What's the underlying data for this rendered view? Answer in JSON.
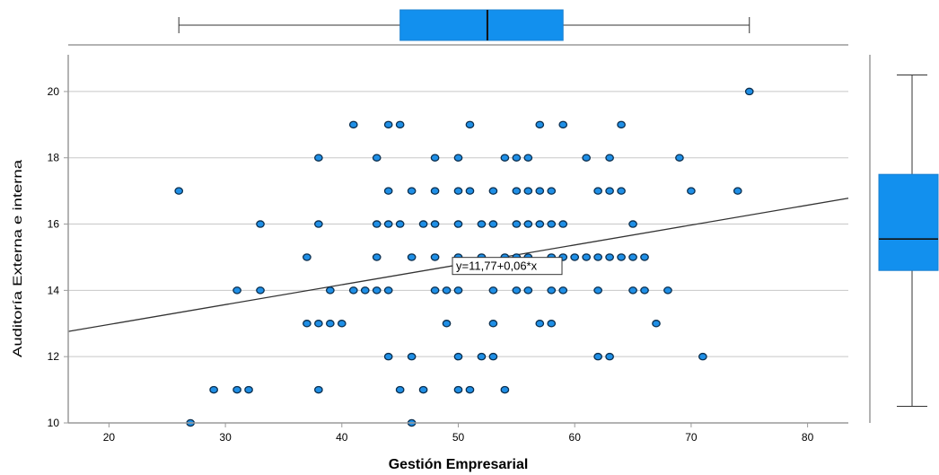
{
  "chart_data": {
    "type": "scatter",
    "title": "",
    "xlabel": "Gestión Empresarial",
    "ylabel": "Auditoría Externa e interna",
    "xlim": [
      16.5,
      83.5
    ],
    "ylim": [
      10,
      21
    ],
    "x_ticks": [
      20,
      30,
      40,
      50,
      60,
      70,
      80
    ],
    "y_ticks": [
      10,
      12,
      14,
      16,
      18,
      20
    ],
    "grid": "horizontal",
    "colors": {
      "point": "#1f8fe6",
      "point_edge": "#0b2f4f",
      "box": "#1290ee",
      "line": "#333333",
      "axis": "#9a9a9a"
    },
    "fit_line": {
      "label": "y=11,77+0,06*x",
      "intercept": 11.77,
      "slope": 0.06,
      "label_at": [
        49.5,
        14.75
      ]
    },
    "x_boxplot": {
      "min": 26,
      "q1": 45,
      "median": 52.5,
      "q3": 59,
      "max": 75
    },
    "y_boxplot": {
      "min": 10.5,
      "q1": 14.6,
      "median": 15.55,
      "q3": 17.5,
      "max": 20.5
    },
    "points": [
      [
        75,
        20
      ],
      [
        41,
        19
      ],
      [
        44,
        19
      ],
      [
        45,
        19
      ],
      [
        51,
        19
      ],
      [
        57,
        19
      ],
      [
        59,
        19
      ],
      [
        64,
        19
      ],
      [
        38,
        18
      ],
      [
        43,
        18
      ],
      [
        48,
        18
      ],
      [
        50,
        18
      ],
      [
        54,
        18
      ],
      [
        55,
        18
      ],
      [
        56,
        18
      ],
      [
        61,
        18
      ],
      [
        63,
        18
      ],
      [
        69,
        18
      ],
      [
        26,
        17
      ],
      [
        44,
        17
      ],
      [
        46,
        17
      ],
      [
        48,
        17
      ],
      [
        50,
        17
      ],
      [
        51,
        17
      ],
      [
        53,
        17
      ],
      [
        55,
        17
      ],
      [
        56,
        17
      ],
      [
        57,
        17
      ],
      [
        58,
        17
      ],
      [
        62,
        17
      ],
      [
        63,
        17
      ],
      [
        64,
        17
      ],
      [
        70,
        17
      ],
      [
        74,
        17
      ],
      [
        33,
        16
      ],
      [
        38,
        16
      ],
      [
        43,
        16
      ],
      [
        44,
        16
      ],
      [
        45,
        16
      ],
      [
        47,
        16
      ],
      [
        48,
        16
      ],
      [
        50,
        16
      ],
      [
        52,
        16
      ],
      [
        53,
        16
      ],
      [
        55,
        16
      ],
      [
        56,
        16
      ],
      [
        57,
        16
      ],
      [
        58,
        16
      ],
      [
        59,
        16
      ],
      [
        65,
        16
      ],
      [
        37,
        15
      ],
      [
        43,
        15
      ],
      [
        46,
        15
      ],
      [
        48,
        15
      ],
      [
        50,
        15
      ],
      [
        52,
        15
      ],
      [
        54,
        15
      ],
      [
        55,
        15
      ],
      [
        56,
        15
      ],
      [
        58,
        15
      ],
      [
        59,
        15
      ],
      [
        60,
        15
      ],
      [
        61,
        15
      ],
      [
        62,
        15
      ],
      [
        63,
        15
      ],
      [
        64,
        15
      ],
      [
        65,
        15
      ],
      [
        66,
        15
      ],
      [
        31,
        14
      ],
      [
        33,
        14
      ],
      [
        39,
        14
      ],
      [
        41,
        14
      ],
      [
        42,
        14
      ],
      [
        43,
        14
      ],
      [
        44,
        14
      ],
      [
        48,
        14
      ],
      [
        49,
        14
      ],
      [
        50,
        14
      ],
      [
        53,
        14
      ],
      [
        55,
        14
      ],
      [
        56,
        14
      ],
      [
        58,
        14
      ],
      [
        59,
        14
      ],
      [
        62,
        14
      ],
      [
        65,
        14
      ],
      [
        66,
        14
      ],
      [
        68,
        14
      ],
      [
        37,
        13
      ],
      [
        38,
        13
      ],
      [
        39,
        13
      ],
      [
        40,
        13
      ],
      [
        49,
        13
      ],
      [
        53,
        13
      ],
      [
        57,
        13
      ],
      [
        58,
        13
      ],
      [
        67,
        13
      ],
      [
        44,
        12
      ],
      [
        46,
        12
      ],
      [
        50,
        12
      ],
      [
        52,
        12
      ],
      [
        53,
        12
      ],
      [
        62,
        12
      ],
      [
        63,
        12
      ],
      [
        71,
        12
      ],
      [
        29,
        11
      ],
      [
        31,
        11
      ],
      [
        32,
        11
      ],
      [
        38,
        11
      ],
      [
        45,
        11
      ],
      [
        47,
        11
      ],
      [
        50,
        11
      ],
      [
        51,
        11
      ],
      [
        54,
        11
      ],
      [
        27,
        10
      ],
      [
        46,
        10
      ]
    ]
  }
}
